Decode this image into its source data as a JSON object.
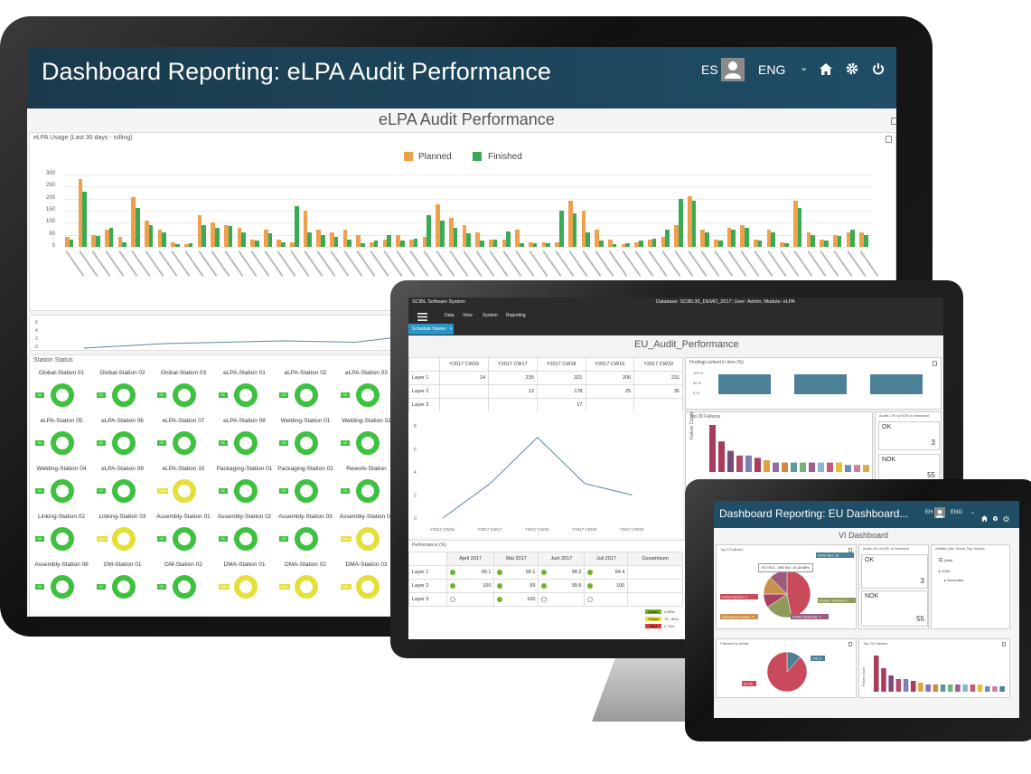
{
  "monitor": {
    "header": {
      "title": "Dashboard Reporting: eLPA Audit Performance",
      "user": "ES",
      "lang": "ENG"
    },
    "page_title": "eLPA Audit Performance",
    "usage_panel": {
      "title": "eLPA Usage (Last 30 days - rolling)"
    },
    "station_panel": {
      "title": "Station Status"
    },
    "icons": [
      "user-icon",
      "chevron-down-icon",
      "home-icon",
      "gear-icon",
      "power-icon",
      "export-icon"
    ],
    "colors": {
      "header": "#1f4e66",
      "planned": "#f0a04b",
      "finished": "#3aaa55",
      "ok": "#3ec13e",
      "open": "#e3e03a"
    },
    "stations": [
      {
        "name": "Global-Station 01",
        "status": "OK"
      },
      {
        "name": "Global-Station 02",
        "status": "OK"
      },
      {
        "name": "Global-Station 03",
        "status": "OK"
      },
      {
        "name": "eLPA-Station 01",
        "status": "OK"
      },
      {
        "name": "eLPA-Station 02",
        "status": "OK"
      },
      {
        "name": "eLPA-Station 03",
        "status": "OK"
      },
      {
        "name": "eLPA-Station 05",
        "status": "OK"
      },
      {
        "name": "eLPA-Station 06",
        "status": "OK"
      },
      {
        "name": "eLPA-Station 07",
        "status": "OK"
      },
      {
        "name": "eLPA-Station 08",
        "status": "OK"
      },
      {
        "name": "Welding-Station 01",
        "status": "OK"
      },
      {
        "name": "Welding-Station 02",
        "status": "OK"
      },
      {
        "name": "Welding-Station 04",
        "status": "OK"
      },
      {
        "name": "eLPA-Station 09",
        "status": "OK"
      },
      {
        "name": "eLPA-Station 10",
        "status": "Open"
      },
      {
        "name": "Packaging-Station 01",
        "status": "OK"
      },
      {
        "name": "Packaging-Station 02",
        "status": "OK"
      },
      {
        "name": "Rework-Station",
        "status": "OK"
      },
      {
        "name": "Linking-Station 02",
        "status": "OK"
      },
      {
        "name": "Linking-Station 03",
        "status": "Open"
      },
      {
        "name": "Assembly-Station 01",
        "status": "OK"
      },
      {
        "name": "Assembly-Station 02",
        "status": "OK"
      },
      {
        "name": "Assembly-Station 03",
        "status": "OK"
      },
      {
        "name": "Assembly-Station 04",
        "status": "Open"
      },
      {
        "name": "Assembly-Station 06",
        "status": "OK"
      },
      {
        "name": "GM-Station 01",
        "status": "OK"
      },
      {
        "name": "GM-Station 02",
        "status": "OK"
      },
      {
        "name": "DMA-Station 01",
        "status": "Open"
      },
      {
        "name": "DMA-Station 02",
        "status": "Open"
      },
      {
        "name": "DMA-Station 03",
        "status": "Open"
      }
    ]
  },
  "laptop": {
    "app": "SCIBL Software System",
    "database": "Database: SCIBL30_DEMO_2017; User: Admin; Module: eLPA",
    "menu": [
      "Data",
      "View",
      "System",
      "Reporting"
    ],
    "tab": "Schedule Viewer",
    "page_title": "EU_Audit_Performance",
    "layer_table": {
      "headers": [
        "Y2017 CW15",
        "Y2017 CW17",
        "Y2017 CW18",
        "Y2017 CW19",
        "Y2017 CW20"
      ],
      "rows": [
        {
          "label": "Layer 1",
          "cells": [
            "14",
            "235",
            "321",
            "206",
            "231"
          ]
        },
        {
          "label": "Layer 2",
          "cells": [
            "",
            "13",
            "178",
            "25",
            "35"
          ]
        },
        {
          "label": "Layer 3",
          "cells": [
            "",
            "",
            "17",
            "",
            ""
          ]
        }
      ]
    },
    "findings_title": "Findings solved in time (%)",
    "top20_title": "Top 20 Failures",
    "top20_ylabel": "Failure Count",
    "ok_nok_title": "Audits: OK vs NOK vs Reworked",
    "ok_label": "OK",
    "ok_value": "3",
    "nok_label": "NOK",
    "nok_value": "55",
    "performance": {
      "title": "Performance (%)",
      "headers": [
        "April 2017",
        "Mai 2017",
        "Juni 2017",
        "Juli 2017",
        "Gesamtsum"
      ],
      "rows": [
        {
          "label": "Layer 1",
          "cells": [
            "99.1",
            "99.1",
            "98.2",
            "94.4"
          ]
        },
        {
          "label": "Layer 2",
          "cells": [
            "100",
            "99",
            "99.5",
            "100"
          ]
        },
        {
          "label": "Layer 3",
          "cells": [
            "",
            "100",
            "",
            ""
          ]
        }
      ]
    },
    "legend": [
      {
        "tag": "Green",
        "text": "≥ 85%"
      },
      {
        "tag": "Yellow",
        "text": "75 - 84%"
      },
      {
        "tag": "Red",
        "text": "≤ 74%"
      }
    ]
  },
  "tablet": {
    "header": {
      "title": "Dashboard Reporting: EU Dashboard...",
      "user": "EH",
      "lang": "ENG"
    },
    "page_title": "VI Dashboard",
    "top5_title": "Top 5 Failures",
    "tooltip": "ES-TEOL - SBE NIO: 15 (46.88%)",
    "ok_nok_title": "Audits: OK vs NOK vs Reworked",
    "filter_title": "Zeitfilter (Jahr, Monat, Tag, Stunde)",
    "filter_items": [
      "(Alle)",
      "2016",
      "November"
    ],
    "ok_label": "OK",
    "ok_value": "3",
    "nok_label": "NOK",
    "nok_value": "55",
    "articles_title": "Failures by Article",
    "top20_title": "Top 20 Failures",
    "top20_ylabel": "Failure Count",
    "pie1_labels": [
      "Fehler NIO: 15",
      "Kratzer - Ausblühun...",
      "Fehlen Rücken: 3",
      "Verbiegung Anbieter: 4",
      "Fehlen Stoßkante: 4"
    ],
    "pie2_labels": [
      "OIS: 6",
      "ES-45"
    ]
  },
  "chart_data": [
    {
      "type": "bar",
      "title": "eLPA Usage (Last 30 days - rolling)",
      "legend": [
        "Planned",
        "Finished"
      ],
      "legend_position": "top",
      "ylim": [
        0,
        300
      ],
      "yticks": [
        0,
        50,
        100,
        150,
        200,
        250,
        300
      ],
      "grid": true,
      "series": [
        {
          "name": "Planned",
          "values": [
            40,
            280,
            50,
            70,
            40,
            205,
            110,
            70,
            20,
            10,
            130,
            100,
            90,
            80,
            30,
            70,
            30,
            20,
            150,
            70,
            60,
            70,
            50,
            20,
            30,
            50,
            30,
            40,
            175,
            120,
            90,
            60,
            30,
            30,
            70,
            20,
            20,
            20,
            190,
            150,
            70,
            30,
            10,
            20,
            30,
            40,
            90,
            210,
            70,
            30,
            80,
            90,
            30,
            70,
            20,
            190,
            60,
            30,
            50,
            60,
            60
          ]
        },
        {
          "name": "Finished",
          "values": [
            30,
            230,
            45,
            80,
            20,
            160,
            90,
            60,
            10,
            15,
            90,
            80,
            85,
            60,
            25,
            55,
            20,
            170,
            60,
            50,
            40,
            30,
            15,
            25,
            50,
            25,
            35,
            130,
            110,
            80,
            55,
            25,
            30,
            65,
            15,
            15,
            15,
            150,
            140,
            60,
            25,
            10,
            15,
            25,
            35,
            70,
            200,
            190,
            60,
            25,
            70,
            80,
            25,
            60,
            15,
            160,
            50,
            25,
            45,
            70,
            50
          ]
        }
      ]
    },
    {
      "type": "line",
      "title": "",
      "x": [
        1,
        2,
        3,
        4,
        5,
        6
      ],
      "y": [
        0,
        1,
        1.6,
        1.3,
        3.2,
        0.9
      ],
      "ylim": [
        0,
        6
      ]
    },
    {
      "type": "line",
      "title": "",
      "x": [
        "Y2017 CW15",
        "Y2017 CW17",
        "Y2017 CW18",
        "Y2017 CW19",
        "Y2017 CW20"
      ],
      "y": [
        0,
        3,
        7,
        3,
        2
      ],
      "ylim": [
        0,
        8
      ],
      "yticks": [
        0,
        2,
        4,
        6,
        8
      ]
    },
    {
      "type": "bar",
      "title": "Findings solved in time (%)",
      "categories": [
        "1",
        "2",
        "3"
      ],
      "values": [
        100,
        100,
        100
      ],
      "ylim": [
        0,
        100
      ]
    },
    {
      "type": "bar",
      "title": "Top 20 Failures",
      "values": [
        20,
        13,
        9,
        7,
        7,
        6,
        5,
        4,
        4,
        4,
        4,
        4,
        4,
        4,
        4,
        3,
        3,
        3
      ]
    },
    {
      "type": "pie",
      "title": "Top 5 Failures",
      "labels": [
        "Fehler NIO",
        "Kratzer - Ausblühun...",
        "Fehlen Rücken",
        "Verbiegung Anbieter",
        "Fehlen Stoßkante"
      ],
      "values": [
        15,
        6,
        3,
        4,
        4
      ]
    },
    {
      "type": "pie",
      "title": "Failures by Article",
      "labels": [
        "OIS",
        "ES-45"
      ],
      "values": [
        6,
        45
      ]
    }
  ]
}
